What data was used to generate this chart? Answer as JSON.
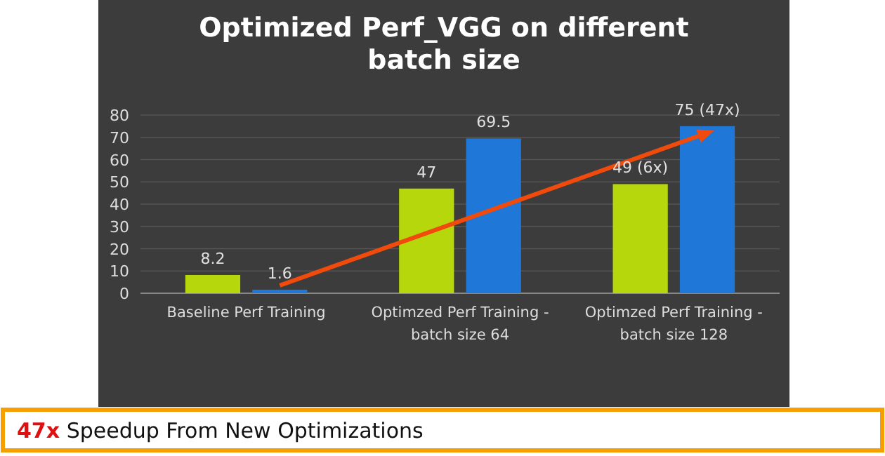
{
  "chart_data": {
    "type": "bar",
    "title": "Optimized Perf_VGG on different batch size",
    "categories": [
      "Baseline Perf Training",
      "Optimzed Perf Training - batch size 64",
      "Optimzed Perf Training - batch size 128"
    ],
    "series": [
      {
        "color": "#b5d70c",
        "values": [
          8.2,
          47,
          49
        ],
        "value_labels": [
          "8.2",
          "47",
          "49 (6x)"
        ]
      },
      {
        "color": "#1f78d8",
        "values": [
          1.6,
          69.5,
          75
        ],
        "value_labels": [
          "1.6",
          "69.5",
          "75 (47x)"
        ]
      }
    ],
    "ylim": [
      0,
      80
    ],
    "yticks": [
      0,
      10,
      20,
      30,
      40,
      50,
      60,
      70,
      80
    ],
    "grid": "y",
    "annotations": [
      "47x Speedup From New Optimizations"
    ]
  }
}
